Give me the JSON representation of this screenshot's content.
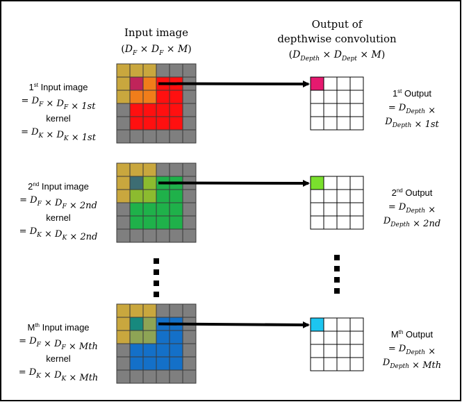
{
  "header": {
    "input_title": "Input image",
    "input_dims": "(D_F × D_F × M)",
    "output_title_1": "Output of",
    "output_title_2": "depthwise convolution",
    "output_dims": "(D_Depth × D_Dept × M)"
  },
  "rows": [
    {
      "input_ord": "1",
      "input_sup": "st",
      "input_label": " Input image",
      "input_eq": "= D_F × D_F × 1st",
      "kernel_label": "kernel",
      "kernel_eq": "= D_K × D_K × 1st",
      "output_ord": "1",
      "output_sup": "st",
      "output_label": " Output",
      "output_eq1": "= D_Depth ×",
      "output_eq2": "D_Depth × 1st",
      "colors": {
        "kernel": "#c9a73e",
        "overlap1": "#c0245a",
        "overlap2": "#f07d1a",
        "main": "#ff1010",
        "out": "#e6196f"
      }
    },
    {
      "input_ord": "2",
      "input_sup": "nd",
      "input_label": " Input image",
      "input_eq": "= D_F × D_F × 2nd",
      "kernel_label": "kernel",
      "kernel_eq": "= D_K × D_K × 2nd",
      "output_ord": "2",
      "output_sup": "nd",
      "output_label": " Output",
      "output_eq1": "= D_Depth ×",
      "output_eq2": "D_Depth × 2nd",
      "colors": {
        "kernel": "#c9a73e",
        "overlap1": "#3d6d73",
        "overlap2": "#8cbb2f",
        "main": "#1fb14a",
        "out": "#7ae02d"
      }
    },
    {
      "input_ord": "M",
      "input_sup": "th",
      "input_label": " Input image",
      "input_eq": "= D_F × D_F × Mth",
      "kernel_label": "kernel",
      "kernel_eq": "= D_K × D_K × Mth",
      "output_ord": "M",
      "output_sup": "th",
      "output_label": " Output",
      "output_eq1": "= D_Depth ×",
      "output_eq2": "D_Depth × Mth",
      "colors": {
        "kernel": "#c9a73e",
        "overlap1": "#17897e",
        "overlap2": "#8ea455",
        "main": "#1470c8",
        "out": "#1dc5f0"
      }
    }
  ],
  "colors": {
    "grid_gray": "#7f7f7f",
    "line": "#000000",
    "frame": "#000000"
  }
}
